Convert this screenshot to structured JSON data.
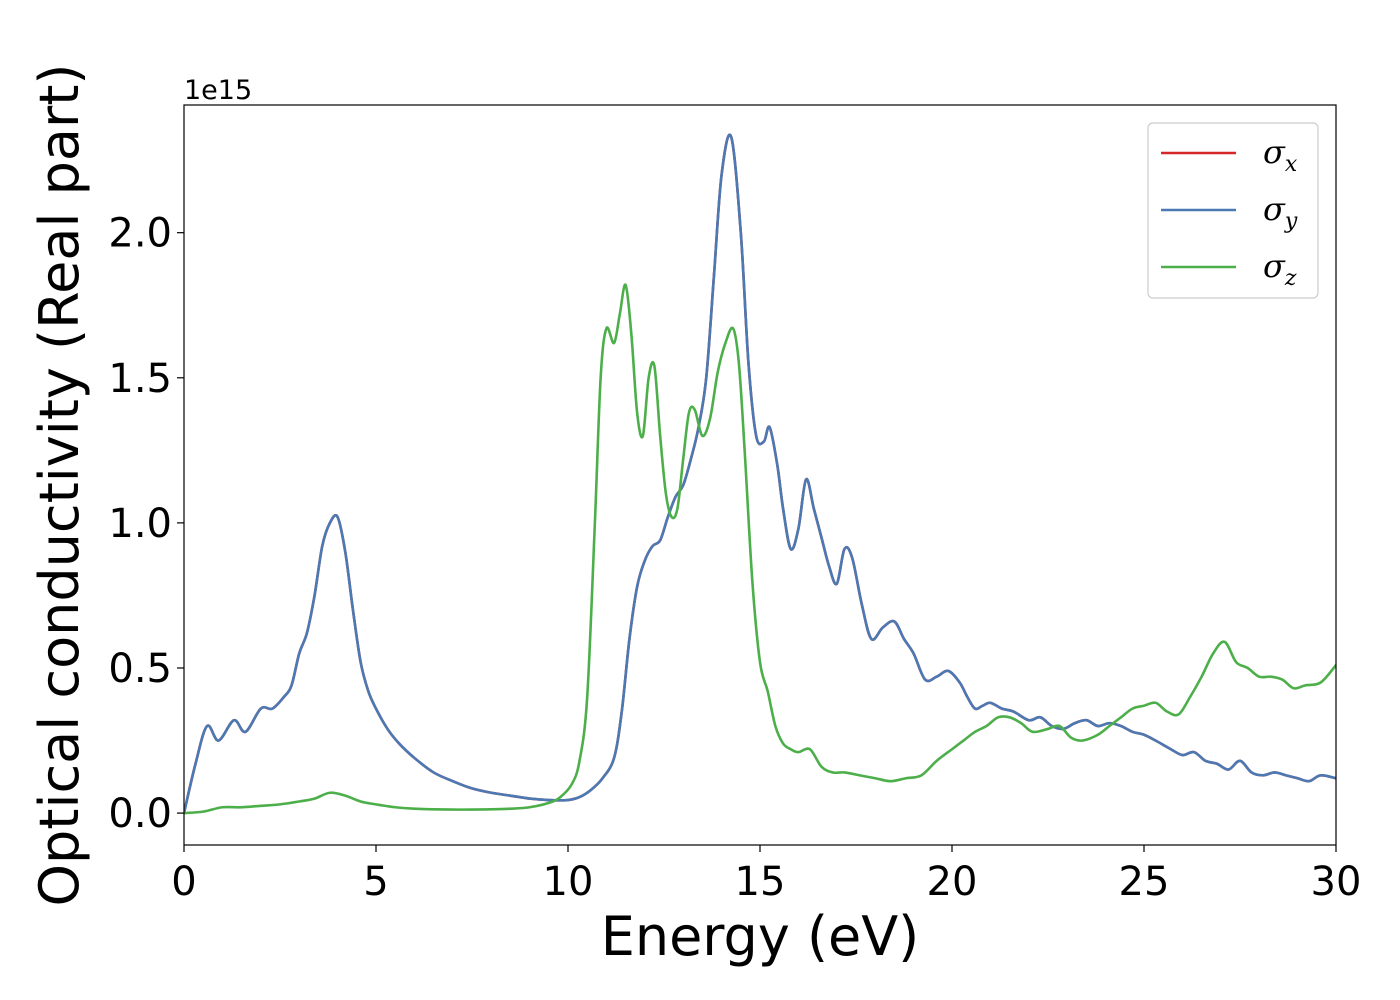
{
  "chart_data": {
    "type": "line",
    "title": "",
    "xlabel": "Energy (eV)",
    "ylabel": "Optical conductivity (Real part)",
    "y_offset_label": "1e15",
    "xlim": [
      0,
      30
    ],
    "ylim": [
      -0.11,
      2.44
    ],
    "x_ticks": [
      0,
      5,
      10,
      15,
      20,
      25,
      30
    ],
    "x_tick_labels": [
      "0",
      "5",
      "10",
      "15",
      "20",
      "25",
      "30"
    ],
    "y_ticks": [
      0.0,
      0.5,
      1.0,
      1.5,
      2.0
    ],
    "y_tick_labels": [
      "0.0",
      "0.5",
      "1.0",
      "1.5",
      "2.0"
    ],
    "grid": false,
    "legend": {
      "position": "top-right",
      "entries": [
        {
          "symbol": "σ",
          "sub": "x",
          "color": "#d62728"
        },
        {
          "symbol": "σ",
          "sub": "y",
          "color": "#4a79b4"
        },
        {
          "symbol": "σ",
          "sub": "z",
          "color": "#4daf4a"
        }
      ]
    },
    "series": [
      {
        "name": "σx",
        "color": "#d62728",
        "x": [
          0,
          0.3,
          0.6,
          0.9,
          1.3,
          1.6,
          2.0,
          2.3,
          2.6,
          2.8,
          3.0,
          3.2,
          3.4,
          3.6,
          3.8,
          4.0,
          4.2,
          4.4,
          4.6,
          4.8,
          5.0,
          5.3,
          5.6,
          6.0,
          6.5,
          7.0,
          7.5,
          8.0,
          8.5,
          9.0,
          9.5,
          10.0,
          10.3,
          10.6,
          10.9,
          11.2,
          11.4,
          11.6,
          11.8,
          12.0,
          12.2,
          12.4,
          12.6,
          12.8,
          13.0,
          13.2,
          13.4,
          13.6,
          13.8,
          14.0,
          14.25,
          14.5,
          14.7,
          14.9,
          15.1,
          15.25,
          15.45,
          15.6,
          15.8,
          16.0,
          16.2,
          16.4,
          16.6,
          16.8,
          17.0,
          17.2,
          17.4,
          17.65,
          17.9,
          18.2,
          18.5,
          18.75,
          19.0,
          19.3,
          19.6,
          19.9,
          20.2,
          20.4,
          20.6,
          20.8,
          21.0,
          21.3,
          21.6,
          22.0,
          22.3,
          22.6,
          22.9,
          23.2,
          23.5,
          23.8,
          24.1,
          24.4,
          24.7,
          25.0,
          25.3,
          25.7,
          26.0,
          26.3,
          26.6,
          26.9,
          27.2,
          27.5,
          27.8,
          28.1,
          28.4,
          28.7,
          29.0,
          29.3,
          29.6,
          30.0
        ],
        "y": [
          0.0,
          0.17,
          0.3,
          0.25,
          0.32,
          0.28,
          0.36,
          0.36,
          0.4,
          0.44,
          0.55,
          0.62,
          0.75,
          0.92,
          1.0,
          1.02,
          0.9,
          0.7,
          0.52,
          0.42,
          0.36,
          0.29,
          0.24,
          0.19,
          0.14,
          0.11,
          0.085,
          0.07,
          0.06,
          0.05,
          0.045,
          0.045,
          0.055,
          0.08,
          0.12,
          0.19,
          0.35,
          0.6,
          0.78,
          0.87,
          0.92,
          0.94,
          1.02,
          1.09,
          1.13,
          1.22,
          1.33,
          1.5,
          1.85,
          2.2,
          2.33,
          2.0,
          1.55,
          1.3,
          1.28,
          1.33,
          1.2,
          1.05,
          0.91,
          0.98,
          1.15,
          1.05,
          0.95,
          0.85,
          0.79,
          0.91,
          0.88,
          0.72,
          0.6,
          0.64,
          0.66,
          0.6,
          0.55,
          0.46,
          0.47,
          0.49,
          0.45,
          0.4,
          0.36,
          0.37,
          0.38,
          0.36,
          0.35,
          0.32,
          0.33,
          0.3,
          0.29,
          0.31,
          0.32,
          0.3,
          0.31,
          0.3,
          0.28,
          0.27,
          0.25,
          0.22,
          0.2,
          0.21,
          0.18,
          0.17,
          0.15,
          0.18,
          0.14,
          0.13,
          0.14,
          0.13,
          0.12,
          0.11,
          0.13,
          0.12
        ],
        "hidden_behind": "σy"
      },
      {
        "name": "σy",
        "color": "#4a79b4",
        "x": [
          0,
          0.3,
          0.6,
          0.9,
          1.3,
          1.6,
          2.0,
          2.3,
          2.6,
          2.8,
          3.0,
          3.2,
          3.4,
          3.6,
          3.8,
          4.0,
          4.2,
          4.4,
          4.6,
          4.8,
          5.0,
          5.3,
          5.6,
          6.0,
          6.5,
          7.0,
          7.5,
          8.0,
          8.5,
          9.0,
          9.5,
          10.0,
          10.3,
          10.6,
          10.9,
          11.2,
          11.4,
          11.6,
          11.8,
          12.0,
          12.2,
          12.4,
          12.6,
          12.8,
          13.0,
          13.2,
          13.4,
          13.6,
          13.8,
          14.0,
          14.25,
          14.5,
          14.7,
          14.9,
          15.1,
          15.25,
          15.45,
          15.6,
          15.8,
          16.0,
          16.2,
          16.4,
          16.6,
          16.8,
          17.0,
          17.2,
          17.4,
          17.65,
          17.9,
          18.2,
          18.5,
          18.75,
          19.0,
          19.3,
          19.6,
          19.9,
          20.2,
          20.4,
          20.6,
          20.8,
          21.0,
          21.3,
          21.6,
          22.0,
          22.3,
          22.6,
          22.9,
          23.2,
          23.5,
          23.8,
          24.1,
          24.4,
          24.7,
          25.0,
          25.3,
          25.7,
          26.0,
          26.3,
          26.6,
          26.9,
          27.2,
          27.5,
          27.8,
          28.1,
          28.4,
          28.7,
          29.0,
          29.3,
          29.6,
          30.0
        ],
        "y": [
          0.0,
          0.17,
          0.3,
          0.25,
          0.32,
          0.28,
          0.36,
          0.36,
          0.4,
          0.44,
          0.55,
          0.62,
          0.75,
          0.92,
          1.0,
          1.02,
          0.9,
          0.7,
          0.52,
          0.42,
          0.36,
          0.29,
          0.24,
          0.19,
          0.14,
          0.11,
          0.085,
          0.07,
          0.06,
          0.05,
          0.045,
          0.045,
          0.055,
          0.08,
          0.12,
          0.19,
          0.35,
          0.6,
          0.78,
          0.87,
          0.92,
          0.94,
          1.02,
          1.09,
          1.13,
          1.22,
          1.33,
          1.5,
          1.85,
          2.2,
          2.33,
          2.0,
          1.55,
          1.3,
          1.28,
          1.33,
          1.2,
          1.05,
          0.91,
          0.98,
          1.15,
          1.05,
          0.95,
          0.85,
          0.79,
          0.91,
          0.88,
          0.72,
          0.6,
          0.64,
          0.66,
          0.6,
          0.55,
          0.46,
          0.47,
          0.49,
          0.45,
          0.4,
          0.36,
          0.37,
          0.38,
          0.36,
          0.35,
          0.32,
          0.33,
          0.3,
          0.29,
          0.31,
          0.32,
          0.3,
          0.31,
          0.3,
          0.28,
          0.27,
          0.25,
          0.22,
          0.2,
          0.21,
          0.18,
          0.17,
          0.15,
          0.18,
          0.14,
          0.13,
          0.14,
          0.13,
          0.12,
          0.11,
          0.13,
          0.12
        ]
      },
      {
        "name": "σz",
        "color": "#4daf4a",
        "x": [
          0,
          0.5,
          1.0,
          1.5,
          2.0,
          2.5,
          3.0,
          3.4,
          3.8,
          4.2,
          4.6,
          5.0,
          5.5,
          6.0,
          7.0,
          8.0,
          8.5,
          9.0,
          9.5,
          9.8,
          10.1,
          10.3,
          10.5,
          10.7,
          10.85,
          11.0,
          11.2,
          11.35,
          11.5,
          11.65,
          11.8,
          11.95,
          12.1,
          12.25,
          12.4,
          12.55,
          12.7,
          12.85,
          13.0,
          13.15,
          13.3,
          13.5,
          13.7,
          13.9,
          14.1,
          14.3,
          14.45,
          14.6,
          14.8,
          15.0,
          15.2,
          15.4,
          15.6,
          15.8,
          16.0,
          16.3,
          16.6,
          16.9,
          17.2,
          17.6,
          18.0,
          18.4,
          18.8,
          19.2,
          19.6,
          20.0,
          20.3,
          20.6,
          20.9,
          21.2,
          21.5,
          21.8,
          22.1,
          22.5,
          22.8,
          23.1,
          23.4,
          23.8,
          24.1,
          24.4,
          24.7,
          25.0,
          25.3,
          25.6,
          25.9,
          26.2,
          26.5,
          26.8,
          27.1,
          27.4,
          27.7,
          28.0,
          28.3,
          28.6,
          28.9,
          29.2,
          29.6,
          30.0
        ],
        "y": [
          0.0,
          0.005,
          0.02,
          0.02,
          0.025,
          0.03,
          0.04,
          0.05,
          0.07,
          0.06,
          0.04,
          0.03,
          0.02,
          0.015,
          0.012,
          0.013,
          0.015,
          0.02,
          0.035,
          0.055,
          0.1,
          0.18,
          0.4,
          1.0,
          1.5,
          1.67,
          1.62,
          1.72,
          1.82,
          1.65,
          1.38,
          1.3,
          1.5,
          1.54,
          1.3,
          1.1,
          1.02,
          1.05,
          1.22,
          1.38,
          1.39,
          1.3,
          1.36,
          1.52,
          1.62,
          1.67,
          1.55,
          1.25,
          0.8,
          0.52,
          0.42,
          0.3,
          0.24,
          0.22,
          0.21,
          0.22,
          0.16,
          0.14,
          0.14,
          0.13,
          0.12,
          0.11,
          0.12,
          0.13,
          0.18,
          0.22,
          0.25,
          0.28,
          0.3,
          0.33,
          0.33,
          0.31,
          0.28,
          0.29,
          0.3,
          0.26,
          0.25,
          0.27,
          0.3,
          0.33,
          0.36,
          0.37,
          0.38,
          0.35,
          0.34,
          0.4,
          0.47,
          0.55,
          0.59,
          0.52,
          0.5,
          0.47,
          0.47,
          0.46,
          0.43,
          0.44,
          0.45,
          0.51
        ]
      }
    ]
  }
}
